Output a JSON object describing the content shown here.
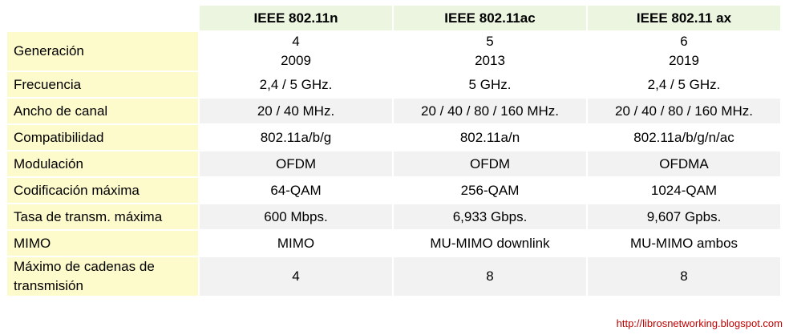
{
  "table": {
    "header": [
      "IEEE 802.11n",
      "IEEE 802.11ac",
      "IEEE 802.11 ax"
    ],
    "rows": [
      {
        "label": "Generación",
        "cells": [
          [
            "4",
            "2009"
          ],
          [
            "5",
            "2013"
          ],
          [
            "6",
            "2019"
          ]
        ]
      },
      {
        "label": "Frecuencia",
        "cells": [
          [
            "2,4 / 5 GHz."
          ],
          [
            "5 GHz."
          ],
          [
            "2,4 / 5 GHz."
          ]
        ]
      },
      {
        "label": "Ancho de canal",
        "cells": [
          [
            "20 / 40 MHz."
          ],
          [
            "20 / 40 / 80 / 160 MHz."
          ],
          [
            "20 / 40 / 80 / 160 MHz."
          ]
        ]
      },
      {
        "label": "Compatibilidad",
        "cells": [
          [
            "802.11a/b/g"
          ],
          [
            "802.11a/n"
          ],
          [
            "802.11a/b/g/n/ac"
          ]
        ]
      },
      {
        "label": "Modulación",
        "cells": [
          [
            "OFDM"
          ],
          [
            "OFDM"
          ],
          [
            "OFDMA"
          ]
        ]
      },
      {
        "label": "Codificación máxima",
        "cells": [
          [
            "64-QAM"
          ],
          [
            "256-QAM"
          ],
          [
            "1024-QAM"
          ]
        ]
      },
      {
        "label": "Tasa de transm. máxima",
        "cells": [
          [
            "600 Mbps."
          ],
          [
            "6,933 Gbps."
          ],
          [
            "9,607 Gpbs."
          ]
        ]
      },
      {
        "label": "MIMO",
        "cells": [
          [
            "MIMO"
          ],
          [
            "MU-MIMO downlink"
          ],
          [
            "MU-MIMO ambos"
          ]
        ]
      },
      {
        "label": "Máximo de cadenas de transmisión",
        "cells": [
          [
            "4"
          ],
          [
            "8"
          ],
          [
            "8"
          ]
        ]
      }
    ]
  },
  "footer": "http://librosnetworking.blogspot.com"
}
